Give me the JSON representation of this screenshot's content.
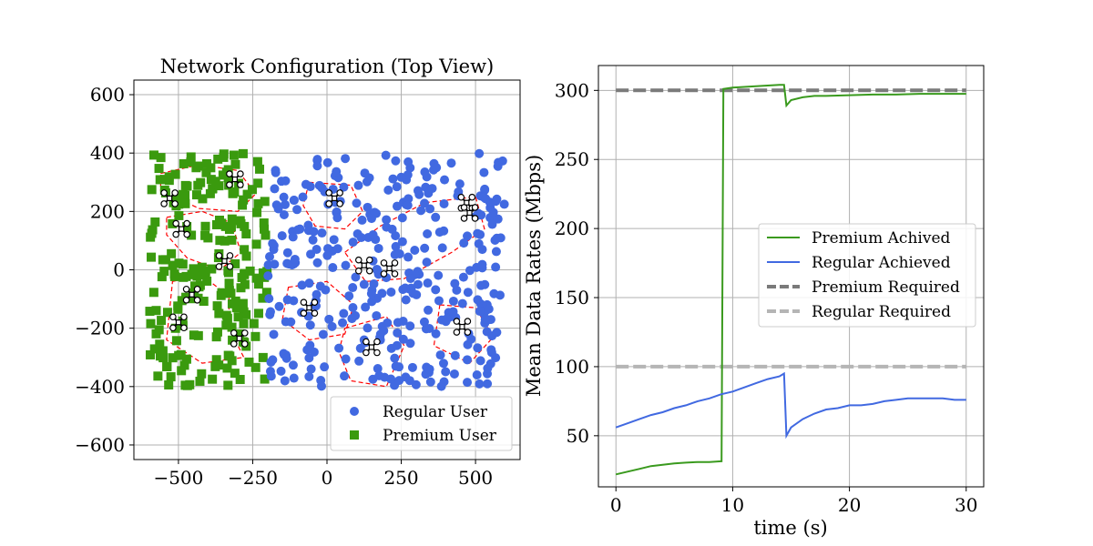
{
  "chart_data": [
    {
      "type": "scatter",
      "title": "Network Configuration (Top View)",
      "xlabel": "",
      "ylabel": "",
      "xlim": [
        -650,
        650
      ],
      "ylim": [
        -650,
        650
      ],
      "xticks": [
        -500,
        -250,
        0,
        250,
        500
      ],
      "xtick_labels": [
        "−500",
        "−250",
        "0",
        "250",
        "500"
      ],
      "yticks": [
        -600,
        -400,
        -200,
        0,
        200,
        400,
        600
      ],
      "ytick_labels": [
        "−600",
        "−400",
        "−200",
        "0",
        "200",
        "400",
        "600"
      ],
      "grid": true,
      "legend_position": "lower-right",
      "series": [
        {
          "name": "Regular User",
          "marker": "circle",
          "color": "#4169e1",
          "x_range": [
            -200,
            600
          ],
          "y_range": [
            -400,
            400
          ],
          "approx_count": 360
        },
        {
          "name": "Premium User",
          "marker": "square",
          "color": "#3a9a0e",
          "x_range": [
            -600,
            -200
          ],
          "y_range": [
            -400,
            400
          ],
          "approx_count": 230
        }
      ],
      "uavs": [
        {
          "x": -530,
          "y": 245
        },
        {
          "x": -310,
          "y": 310
        },
        {
          "x": -490,
          "y": 140
        },
        {
          "x": -345,
          "y": 30
        },
        {
          "x": -455,
          "y": -85
        },
        {
          "x": -500,
          "y": -180
        },
        {
          "x": -295,
          "y": -235
        },
        {
          "x": 25,
          "y": 245
        },
        {
          "x": 470,
          "y": 230
        },
        {
          "x": 480,
          "y": 195
        },
        {
          "x": 125,
          "y": 15
        },
        {
          "x": 210,
          "y": 5
        },
        {
          "x": -60,
          "y": -130
        },
        {
          "x": 455,
          "y": -195
        },
        {
          "x": 150,
          "y": -265
        }
      ],
      "uav_color": "#000000",
      "boundary_color": "#ff0000"
    },
    {
      "type": "line",
      "title": "",
      "xlabel": "time (s)",
      "ylabel": "Mean Data Rates (Mbps)",
      "xlim": [
        -1.5,
        31.5
      ],
      "ylim": [
        13,
        318
      ],
      "xticks": [
        0,
        10,
        20,
        30
      ],
      "xtick_labels": [
        "0",
        "10",
        "20",
        "30"
      ],
      "yticks": [
        50,
        100,
        150,
        200,
        250,
        300
      ],
      "ytick_labels": [
        "50",
        "100",
        "150",
        "200",
        "250",
        "300"
      ],
      "grid": true,
      "legend_position": "center-right",
      "series": [
        {
          "name": "Premium Achived",
          "color": "#3a9a1e",
          "style": "solid",
          "x": [
            0,
            1,
            2,
            3,
            4,
            5,
            6,
            7,
            8,
            9,
            9.05,
            9.2,
            10,
            11,
            12,
            13,
            14,
            14.4,
            14.6,
            15,
            16,
            17,
            18,
            20,
            22,
            24,
            26,
            28,
            30
          ],
          "y": [
            22,
            24,
            26,
            28,
            29,
            30,
            30.5,
            31,
            31,
            31.5,
            31.5,
            301,
            302,
            302.5,
            303,
            303.5,
            304,
            304,
            289,
            293,
            295,
            296,
            296,
            296.5,
            297,
            297,
            297.5,
            297.5,
            297.5
          ]
        },
        {
          "name": "Regular Achieved",
          "color": "#4169e1",
          "style": "solid",
          "x": [
            0,
            1,
            2,
            3,
            4,
            5,
            6,
            7,
            8,
            9,
            10,
            11,
            12,
            13,
            14,
            14.4,
            14.6,
            15,
            16,
            17,
            18,
            19,
            20,
            21,
            22,
            23,
            24,
            25,
            26,
            27,
            28,
            29,
            30
          ],
          "y": [
            56,
            59,
            62,
            65,
            67,
            70,
            72,
            75,
            77,
            80,
            82,
            85,
            88,
            91,
            93,
            95,
            50,
            56,
            62,
            66,
            69,
            70,
            72,
            72,
            73,
            75,
            76,
            77,
            77,
            77,
            77,
            76,
            76
          ]
        },
        {
          "name": "Premium Required",
          "color": "#7a7a7a",
          "style": "dashed",
          "x": [
            0,
            30
          ],
          "y": [
            300,
            300
          ]
        },
        {
          "name": "Regular Required",
          "color": "#b5b5b5",
          "style": "dashed",
          "x": [
            0,
            30
          ],
          "y": [
            100,
            100
          ]
        }
      ]
    }
  ]
}
